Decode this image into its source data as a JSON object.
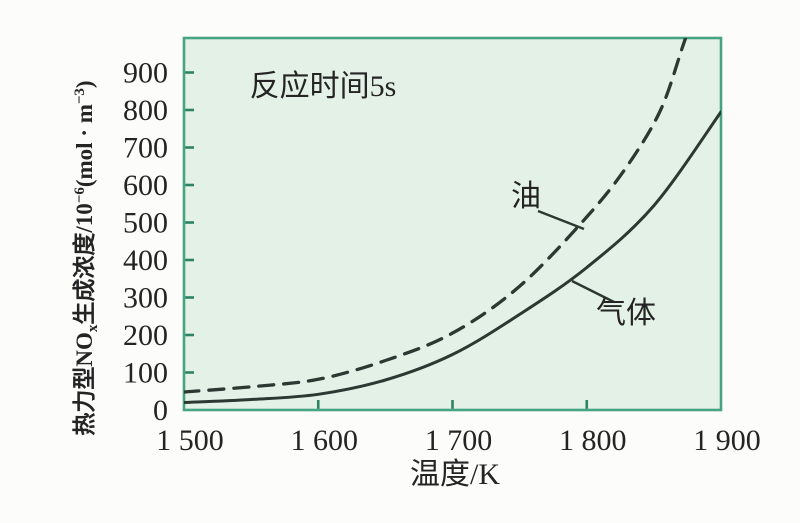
{
  "page": {
    "background": "#fcfcfb"
  },
  "chart_data": {
    "type": "line",
    "annotation": "反应时间5s",
    "xlabel": "温度/K",
    "ylabel_plain": "热力型NOx生成浓度/10−6(mol·m−3)",
    "ylabel_parts": [
      {
        "text": "热力型NO",
        "style": "normal"
      },
      {
        "text": "x",
        "style": "sub"
      },
      {
        "text": "生成浓度/10",
        "style": "normal"
      },
      {
        "text": "−6",
        "style": "sup"
      },
      {
        "text": "(mol · m",
        "style": "normal"
      },
      {
        "text": "−3",
        "style": "sup"
      },
      {
        "text": ")",
        "style": "normal"
      }
    ],
    "xlim": [
      1500,
      1900
    ],
    "ylim": [
      0,
      992
    ],
    "grid": false,
    "legend_position": "inline-labels",
    "x_ticks": [
      {
        "value": 1500,
        "label": "1 500"
      },
      {
        "value": 1600,
        "label": "1 600"
      },
      {
        "value": 1700,
        "label": "1 700"
      },
      {
        "value": 1800,
        "label": "1 800"
      },
      {
        "value": 1900,
        "label": "1 900"
      }
    ],
    "x_tick_marks": [
      1600,
      1700,
      1800
    ],
    "y_ticks": [
      {
        "value": 0,
        "label": "0"
      },
      {
        "value": 100,
        "label": "100"
      },
      {
        "value": 200,
        "label": "200"
      },
      {
        "value": 300,
        "label": "300"
      },
      {
        "value": 400,
        "label": "400"
      },
      {
        "value": 500,
        "label": "500"
      },
      {
        "value": 600,
        "label": "600"
      },
      {
        "value": 700,
        "label": "700"
      },
      {
        "value": 800,
        "label": "800"
      },
      {
        "value": 900,
        "label": "900"
      }
    ],
    "y_tick_marks": [
      100,
      200,
      300,
      400,
      500,
      600,
      700,
      800,
      900
    ],
    "series": [
      {
        "name": "油",
        "line_style": "dashed",
        "points": [
          [
            1500,
            48
          ],
          [
            1550,
            62
          ],
          [
            1600,
            82
          ],
          [
            1650,
            132
          ],
          [
            1700,
            205
          ],
          [
            1750,
            330
          ],
          [
            1800,
            515
          ],
          [
            1830,
            650
          ],
          [
            1855,
            800
          ],
          [
            1872,
            975
          ],
          [
            1884,
            1100
          ]
        ]
      },
      {
        "name": "气体",
        "line_style": "solid",
        "points": [
          [
            1500,
            20
          ],
          [
            1550,
            28
          ],
          [
            1600,
            42
          ],
          [
            1650,
            80
          ],
          [
            1700,
            148
          ],
          [
            1750,
            255
          ],
          [
            1800,
            380
          ],
          [
            1850,
            545
          ],
          [
            1900,
            795
          ]
        ]
      }
    ],
    "colors": {
      "plot_bg": "#e4f1e6",
      "plot_border": "#46a484",
      "tick": "#2e8265",
      "curve": "#2c3831",
      "text": "#242424"
    }
  }
}
